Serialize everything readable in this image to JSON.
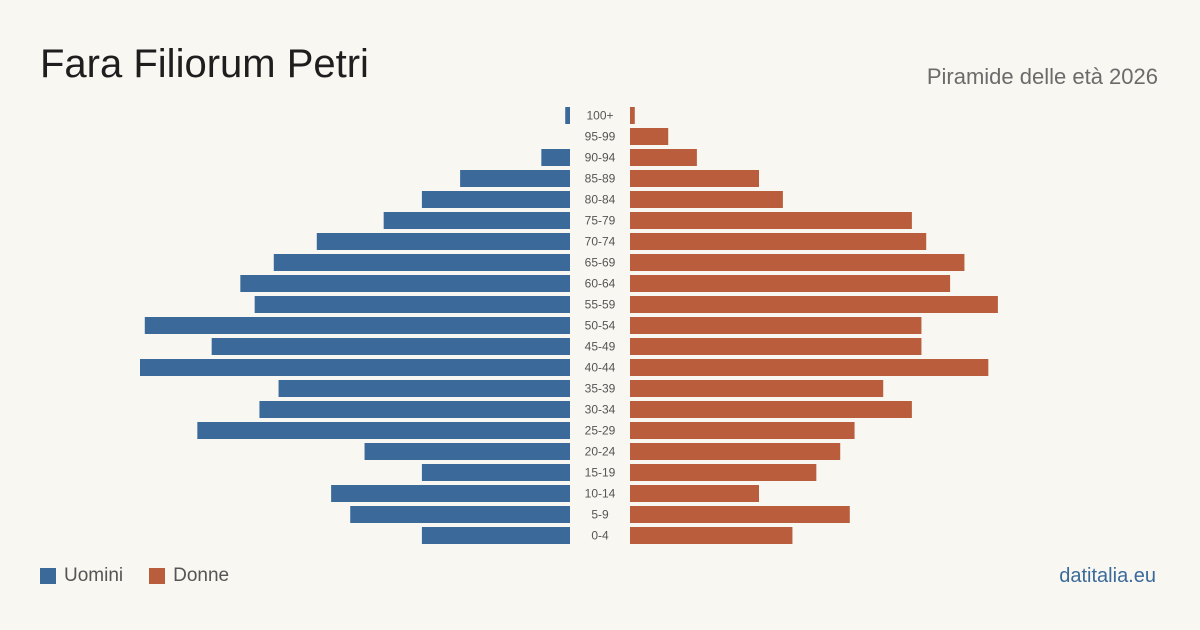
{
  "header": {
    "title": "Fara Filiorum Petri",
    "subtitle": "Piramide delle età 2026"
  },
  "legend": {
    "men_label": "Uomini",
    "women_label": "Donne"
  },
  "source": "datitalia.eu",
  "colors": {
    "men": "#3b6a9a",
    "women": "#b95d3c",
    "background": "#f9f7f2",
    "source": "#3b6a9a"
  },
  "chart_data": {
    "type": "bar",
    "orientation": "horizontal-population-pyramid",
    "categories": [
      "100+",
      "95-99",
      "90-94",
      "85-89",
      "80-84",
      "75-79",
      "70-74",
      "65-69",
      "60-64",
      "55-59",
      "50-54",
      "45-49",
      "40-44",
      "35-39",
      "30-34",
      "25-29",
      "20-24",
      "15-19",
      "10-14",
      "5-9",
      "0-4"
    ],
    "series": [
      {
        "name": "Uomini",
        "values": [
          1,
          0,
          6,
          23,
          31,
          39,
          53,
          62,
          69,
          66,
          89,
          75,
          90,
          61,
          65,
          78,
          43,
          31,
          50,
          46,
          31
        ]
      },
      {
        "name": "Donne",
        "values": [
          1,
          8,
          14,
          27,
          32,
          59,
          62,
          70,
          67,
          77,
          61,
          61,
          75,
          53,
          59,
          47,
          44,
          39,
          27,
          46,
          34
        ]
      }
    ],
    "xlabel": "",
    "ylabel": "",
    "grid": false,
    "legend_position": "bottom-left"
  }
}
